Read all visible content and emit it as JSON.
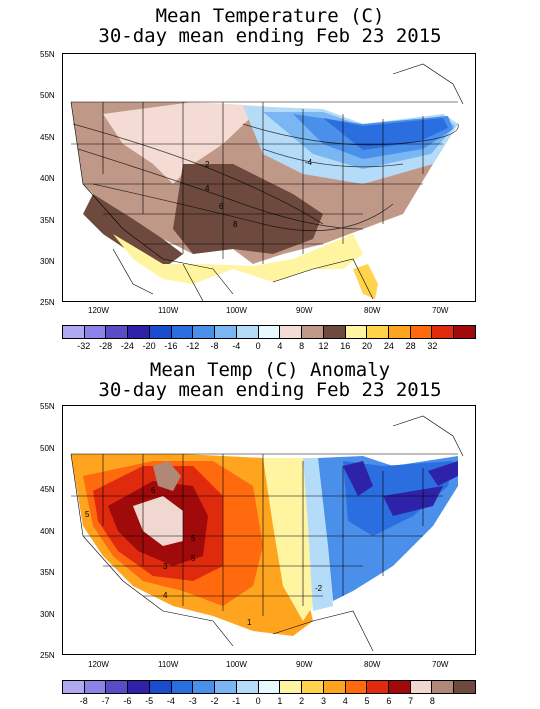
{
  "top": {
    "title_line1": "Mean Temperature (C)",
    "title_line2": "30-day mean ending Feb 23 2015",
    "lat_labels": [
      "55N",
      "50N",
      "45N",
      "40N",
      "35N",
      "30N",
      "25N"
    ],
    "lon_labels": [
      "120W",
      "110W",
      "100W",
      "90W",
      "80W",
      "70W"
    ],
    "contour_labels": [
      "-4",
      "2",
      "4",
      "6",
      "8",
      "6"
    ],
    "colorbar_ticks": [
      "-32",
      "-28",
      "-24",
      "-20",
      "-16",
      "-12",
      "-8",
      "-4",
      "0",
      "4",
      "8",
      "12",
      "16",
      "20",
      "24",
      "28",
      "32"
    ],
    "colorbar_colors": [
      "#b0a8f0",
      "#8c82e8",
      "#5a4cc8",
      "#2e22a8",
      "#1a4cd0",
      "#2a6ee0",
      "#4a90ea",
      "#7ab6f2",
      "#b4dcf8",
      "#e8f8ff",
      "#f4dcd4",
      "#c09888",
      "#6e4a3e",
      "#fff4a0",
      "#ffd44a",
      "#ffa41e",
      "#ff6a0e",
      "#e02a0e",
      "#a00a0a"
    ]
  },
  "bottom": {
    "title_line1": "Mean Temp (C) Anomaly",
    "title_line2": "30-day mean ending Feb 23 2015",
    "lat_labels": [
      "55N",
      "50N",
      "45N",
      "40N",
      "35N",
      "30N",
      "25N"
    ],
    "lon_labels": [
      "120W",
      "110W",
      "100W",
      "90W",
      "80W",
      "70W"
    ],
    "contour_labels": [
      "6",
      "5",
      "5",
      "5",
      "3",
      "4",
      "-2",
      "1"
    ],
    "colorbar_ticks": [
      "-8",
      "-7",
      "-6",
      "-5",
      "-4",
      "-3",
      "-2",
      "-1",
      "0",
      "1",
      "2",
      "3",
      "4",
      "5",
      "6",
      "7",
      "8"
    ],
    "colorbar_colors": [
      "#b0a8f0",
      "#8c82e8",
      "#5a4cc8",
      "#2e22a8",
      "#1a4cd0",
      "#2a6ee0",
      "#4a90ea",
      "#7ab6f2",
      "#b4dcf8",
      "#e8f8ff",
      "#fff4a0",
      "#ffd44a",
      "#ffa41e",
      "#ff6a0e",
      "#e02a0e",
      "#a00a0a",
      "#f0d8d0",
      "#b08878",
      "#6e4a3e"
    ]
  }
}
